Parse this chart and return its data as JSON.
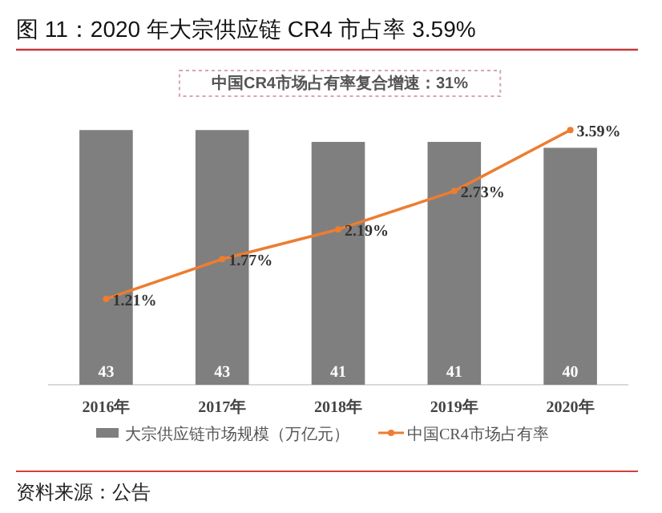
{
  "chart_data": {
    "type": "bar",
    "title": "图 11：2020 年大宗供应链 CR4 市占率 3.59%",
    "categories": [
      "2016年",
      "2017年",
      "2018年",
      "2019年",
      "2020年"
    ],
    "series": [
      {
        "name": "大宗供应链市场规模（万亿元）",
        "color": "#7f7f7f",
        "values": [
          43,
          43,
          41,
          41,
          40
        ]
      },
      {
        "name": "中国CR4市场占有率",
        "type": "line",
        "axis": "y2",
        "color": "#ed7d31",
        "values": [
          1.21,
          1.77,
          2.19,
          2.73,
          3.59
        ],
        "value_labels": [
          "1.21%",
          "1.77%",
          "2.19%",
          "2.73%",
          "3.59%"
        ]
      }
    ],
    "data_labels": true,
    "legend": "bottom",
    "marker": "circle",
    "annotations": [
      "中国CR4市场占有率复合增速：31%",
      "资料来源：公告"
    ]
  }
}
